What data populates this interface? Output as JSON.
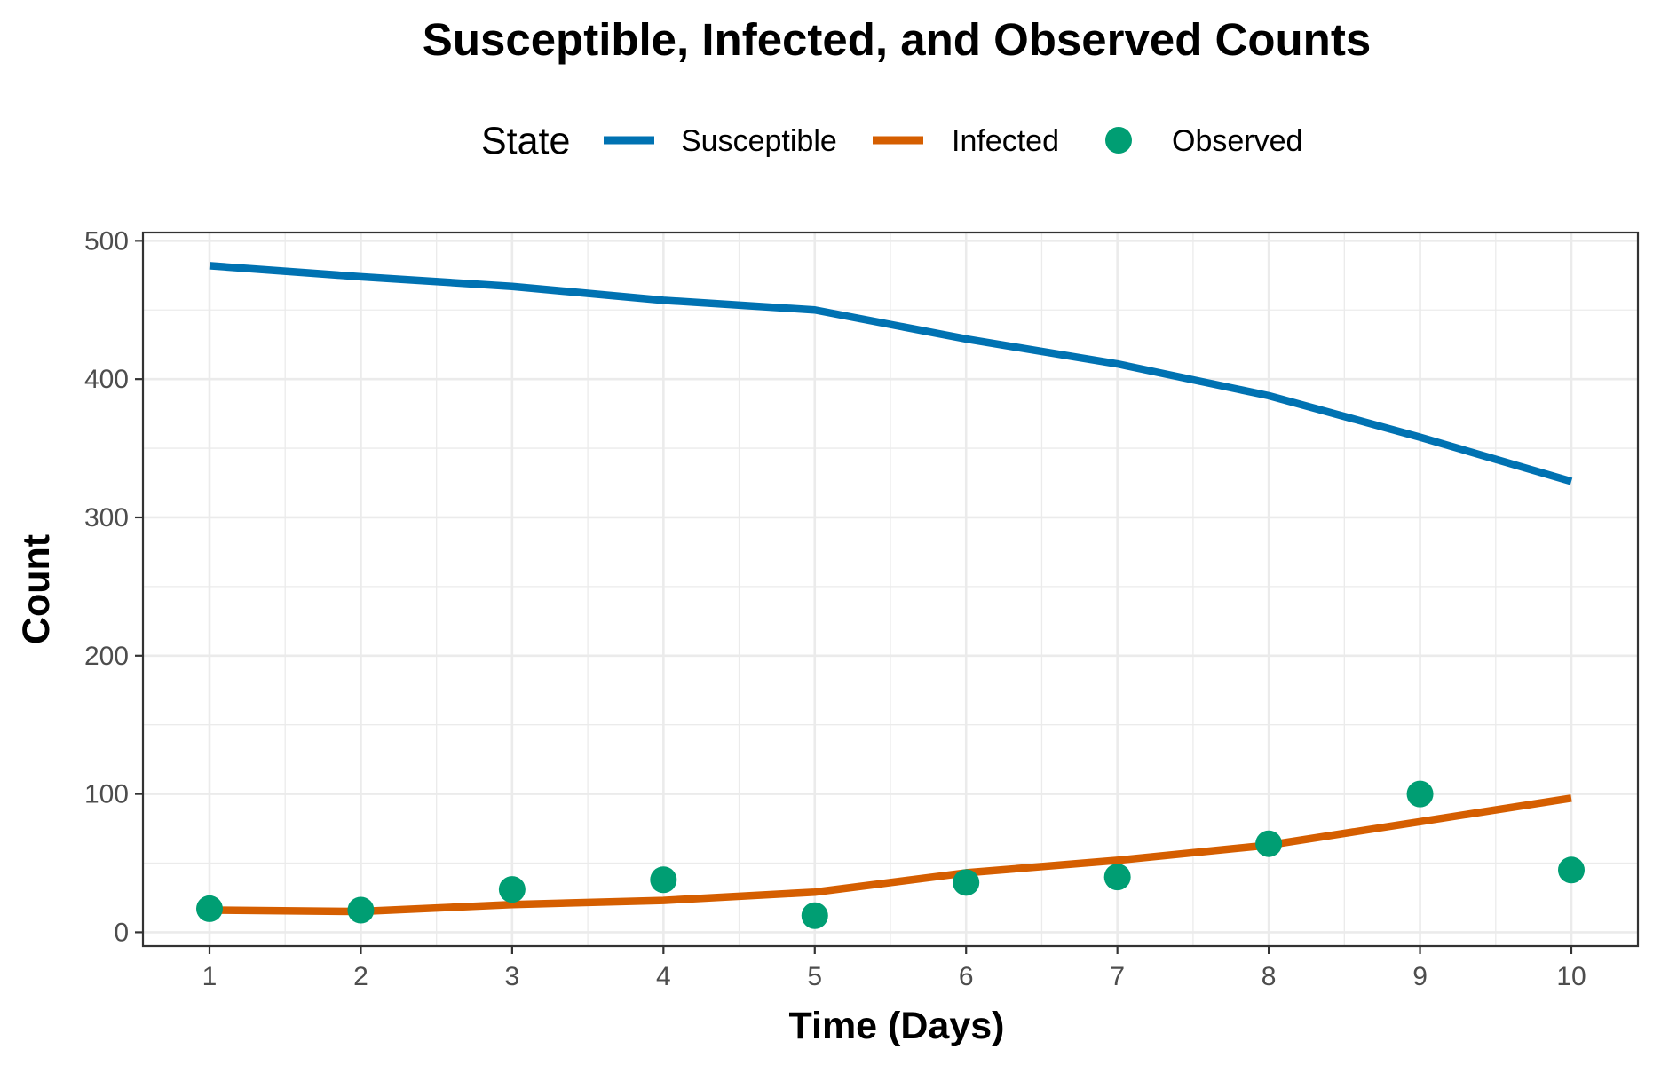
{
  "chart_data": {
    "type": "line",
    "title": "Susceptible, Infected, and Observed Counts",
    "xlabel": "Time (Days)",
    "ylabel": "Count",
    "legend_title": "State",
    "legend_position": "top",
    "grid": true,
    "xlim": [
      0.56,
      10.44
    ],
    "ylim": [
      -10,
      506
    ],
    "x_ticks": [
      1,
      2,
      3,
      4,
      5,
      6,
      7,
      8,
      9,
      10
    ],
    "y_ticks": [
      0,
      100,
      200,
      300,
      400,
      500
    ],
    "x": [
      1,
      2,
      3,
      4,
      5,
      6,
      7,
      8,
      9,
      10
    ],
    "series": [
      {
        "name": "Susceptible",
        "kind": "line",
        "color": "#0072B2",
        "values": [
          482,
          474,
          467,
          457,
          450,
          429,
          411,
          388,
          358,
          326
        ]
      },
      {
        "name": "Infected",
        "kind": "line",
        "color": "#D55E00",
        "values": [
          16,
          15,
          20,
          23,
          29,
          43,
          52,
          63,
          80,
          97
        ]
      },
      {
        "name": "Observed",
        "kind": "points",
        "color": "#009E73",
        "values": [
          17,
          16,
          31,
          38,
          12,
          36,
          40,
          64,
          100,
          45
        ]
      }
    ]
  }
}
